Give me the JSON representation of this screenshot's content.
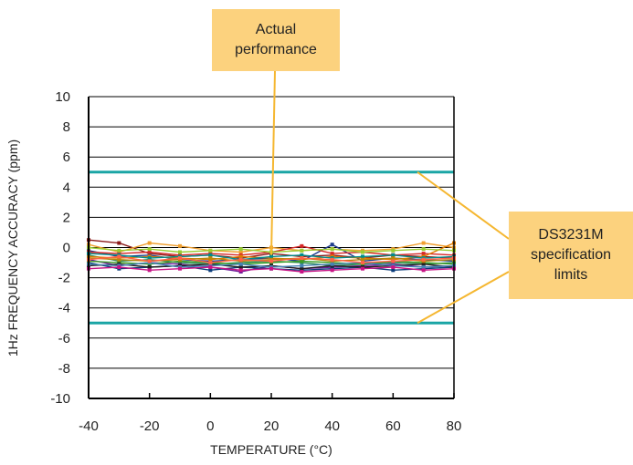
{
  "chart_data": {
    "type": "line",
    "title": "",
    "xlabel": "TEMPERATURE (°C)",
    "ylabel": "1Hz FREQUENCY ACCURACY (ppm)",
    "xlim": [
      -40,
      80
    ],
    "ylim": [
      -10,
      10
    ],
    "x_ticks": [
      "-40",
      "-20",
      "0",
      "20",
      "40",
      "60",
      "80"
    ],
    "y_ticks": [
      "10",
      "8",
      "6",
      "4",
      "2",
      "0",
      "-2",
      "-4",
      "-6",
      "-8",
      "-10"
    ],
    "grid": "horizontal",
    "x": [
      -40,
      -30,
      -20,
      -10,
      0,
      10,
      20,
      30,
      40,
      50,
      60,
      70,
      80
    ],
    "series": [
      {
        "values": [
          0.5,
          0.3,
          -0.4,
          -0.6,
          -0.5,
          -0.7,
          -0.4,
          -0.6,
          -0.5,
          -0.7,
          -0.5,
          -0.6,
          -0.7
        ],
        "color": "#8b1a1a"
      },
      {
        "values": [
          0.2,
          -0.3,
          0.3,
          0.1,
          -0.2,
          -0.3,
          0.0,
          -0.2,
          -0.1,
          -0.2,
          -0.1,
          0.3,
          0.0
        ],
        "color": "#f0a030"
      },
      {
        "values": [
          -0.2,
          -0.6,
          -0.5,
          -0.8,
          -0.9,
          -0.8,
          -0.7,
          -0.9,
          0.2,
          -0.9,
          -0.7,
          -0.8,
          -0.9
        ],
        "color": "#1f3d8c"
      },
      {
        "values": [
          -0.5,
          -0.9,
          -0.8,
          -1.0,
          -1.1,
          -1.0,
          -0.9,
          -1.0,
          -1.2,
          -1.1,
          -1.0,
          -1.1,
          -1.0
        ],
        "color": "#2e8b57"
      },
      {
        "values": [
          -0.8,
          -1.2,
          -1.0,
          -1.1,
          -1.3,
          -1.6,
          -1.2,
          -1.4,
          -1.3,
          -1.2,
          -1.1,
          -1.3,
          -1.2
        ],
        "color": "#6a1b9a"
      },
      {
        "values": [
          -1.0,
          -1.4,
          -1.3,
          -1.2,
          -1.5,
          -1.3,
          -1.4,
          -1.5,
          -1.4,
          -1.3,
          -1.5,
          -1.4,
          -1.3
        ],
        "color": "#0b3c7a"
      },
      {
        "values": [
          -0.3,
          -0.4,
          -0.3,
          -0.5,
          -0.4,
          -0.5,
          -0.3,
          0.1,
          -0.4,
          -0.3,
          -0.5,
          -0.4,
          -0.5
        ],
        "color": "#d62828"
      },
      {
        "values": [
          -0.6,
          -0.7,
          -0.6,
          -0.7,
          -0.8,
          -0.6,
          -0.7,
          -0.8,
          -0.6,
          -0.7,
          -0.8,
          -0.6,
          0.3
        ],
        "color": "#e07b00"
      },
      {
        "values": [
          -0.9,
          -1.0,
          -1.1,
          -0.9,
          -1.0,
          -1.1,
          -1.0,
          -0.9,
          -1.0,
          -1.1,
          -0.9,
          -1.0,
          -1.1
        ],
        "color": "#3a9d23"
      },
      {
        "values": [
          -1.2,
          -1.1,
          -1.3,
          -1.2,
          -1.1,
          -1.3,
          -1.2,
          -1.4,
          -1.2,
          -1.3,
          -1.2,
          -1.1,
          -1.3
        ],
        "color": "#222222"
      },
      {
        "values": [
          -0.4,
          -0.5,
          -0.7,
          -0.6,
          -0.5,
          -0.8,
          -0.6,
          -0.5,
          -0.7,
          -0.6,
          -0.5,
          -0.7,
          -0.6
        ],
        "color": "#008b8b"
      },
      {
        "values": [
          -0.7,
          -0.8,
          -0.9,
          -0.8,
          -0.7,
          -0.9,
          -0.8,
          -0.7,
          -0.9,
          -0.8,
          -0.7,
          -0.9,
          -0.8
        ],
        "color": "#b8860b"
      },
      {
        "values": [
          -1.1,
          -1.2,
          -1.0,
          -1.3,
          -1.2,
          -1.1,
          -1.3,
          -1.2,
          -1.1,
          -1.0,
          -1.2,
          -1.3,
          -1.2
        ],
        "color": "#4682b4"
      },
      {
        "values": [
          -1.4,
          -1.3,
          -1.5,
          -1.4,
          -1.3,
          -1.5,
          -1.4,
          -1.6,
          -1.5,
          -1.4,
          -1.3,
          -1.5,
          -1.4
        ],
        "color": "#c71585"
      },
      {
        "values": [
          0.0,
          -0.2,
          -0.1,
          -0.3,
          -0.2,
          -0.1,
          -0.3,
          -0.2,
          -0.1,
          -0.3,
          -0.2,
          -0.1,
          -0.2
        ],
        "color": "#9acd32"
      },
      {
        "values": [
          -0.8,
          -0.6,
          -0.9,
          -0.7,
          -1.0,
          -0.8,
          -0.9,
          -0.7,
          -0.8,
          -1.0,
          -0.9,
          -0.8,
          -0.7
        ],
        "color": "#ff6347"
      }
    ],
    "spec_limits": [
      {
        "y": 5,
        "x": [
          -40,
          80
        ],
        "color": "#1aa5a5"
      },
      {
        "y": -5,
        "x": [
          -40,
          80
        ],
        "color": "#1aa5a5"
      }
    ],
    "annotations": {
      "actual": {
        "lines": [
          "Actual",
          "performance"
        ],
        "target": [
          20,
          -0.5
        ]
      },
      "spec": {
        "lines": [
          "DS3231M",
          "specification",
          "limits"
        ],
        "targets": [
          [
            68,
            5
          ],
          [
            68,
            -5
          ]
        ]
      }
    },
    "colors": {
      "callout_fill": "#fcd27e",
      "callout_line": "#f5b731",
      "spec_line": "#1aa5a5",
      "grid": "#000000"
    }
  }
}
